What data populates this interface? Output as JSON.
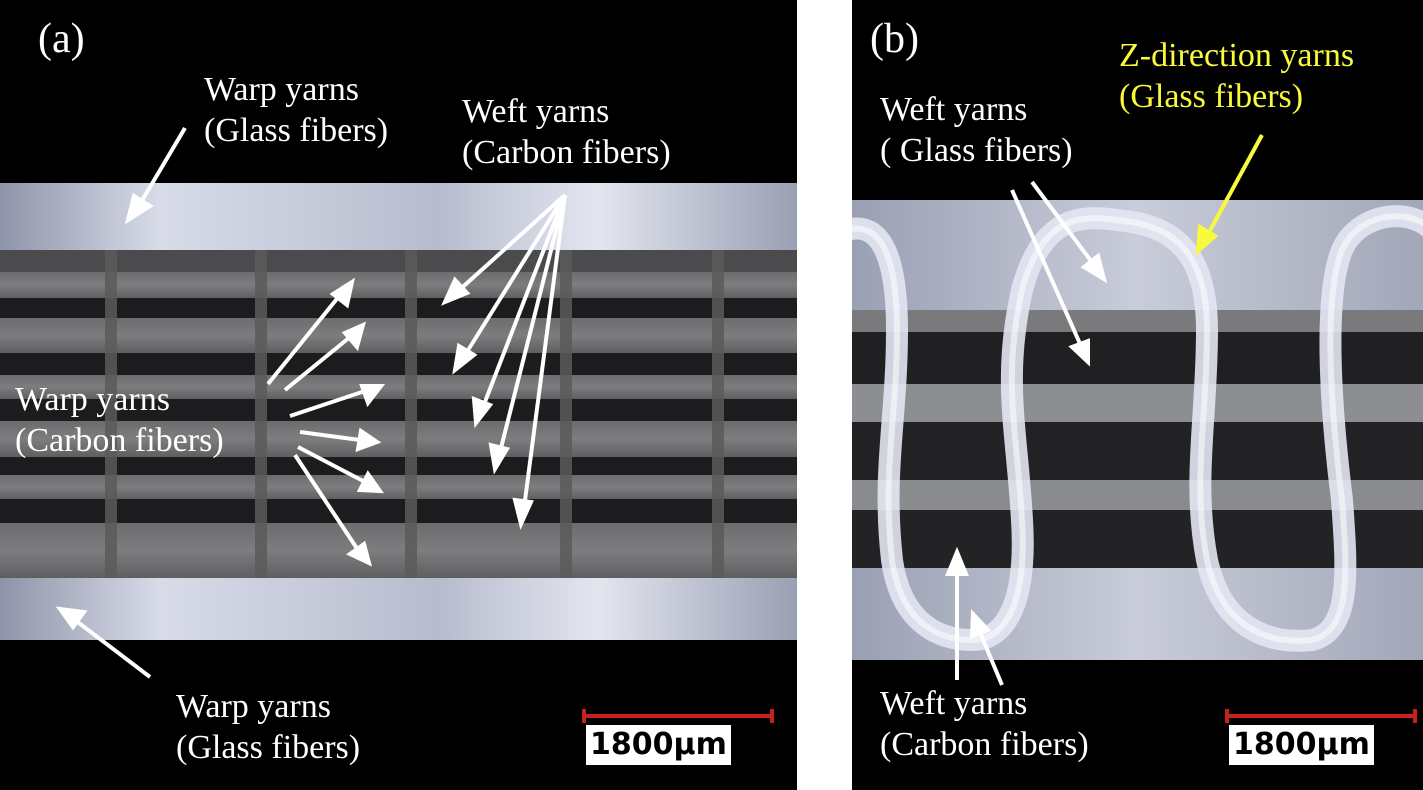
{
  "panel_a": {
    "label": "(a)",
    "warp_glass_top": [
      "Warp yarns",
      "(Glass fibers)"
    ],
    "weft_carbon": [
      "Weft yarns",
      "(Carbon fibers)"
    ],
    "warp_carbon": [
      "Warp yarns",
      "(Carbon fibers)"
    ],
    "warp_glass_bottom": [
      "Warp yarns",
      "(Glass fibers)"
    ],
    "scale": "1800μm"
  },
  "panel_b": {
    "label": "(b)",
    "z_direction": [
      "Z-direction yarns",
      "(Glass fibers)"
    ],
    "weft_glass": [
      "Weft yarns",
      "( Glass fibers)"
    ],
    "weft_carbon": [
      "Weft yarns",
      "(Carbon fibers)"
    ],
    "scale": "1800μm"
  },
  "colors": {
    "background": "#000000",
    "label_white": "#ffffff",
    "label_yellow": "#fafa3c",
    "scale_red": "#c8201f"
  }
}
